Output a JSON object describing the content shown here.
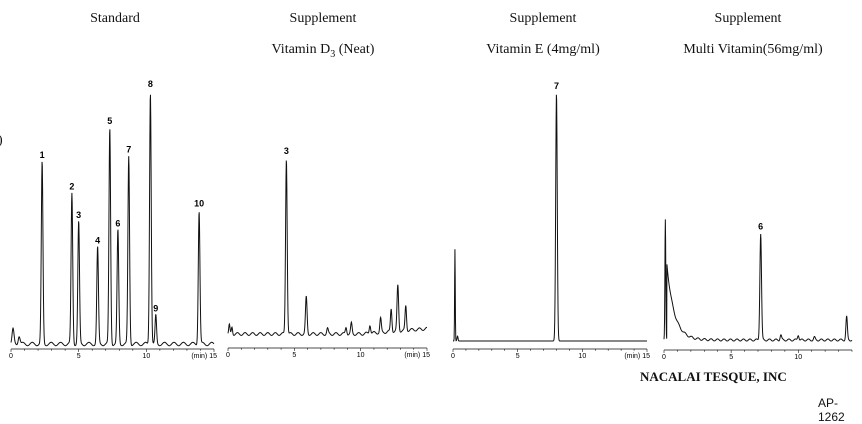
{
  "stray_char": ")",
  "footer": {
    "company": "NACALAI TESQUE, INC",
    "code": "AP-1262"
  },
  "chart_data": [
    {
      "type": "line",
      "title": "Standard",
      "subtitle": "",
      "x_ticks": [
        "0",
        "5",
        "10",
        "(min) 15"
      ],
      "xlim": [
        0,
        15
      ],
      "peaks": [
        {
          "label": "1",
          "x": 2.3,
          "h": 0.64
        },
        {
          "label": "2",
          "x": 4.5,
          "h": 0.53
        },
        {
          "label": "3",
          "x": 5.0,
          "h": 0.43
        },
        {
          "label": "4",
          "x": 6.4,
          "h": 0.34
        },
        {
          "label": "5",
          "x": 7.3,
          "h": 0.76
        },
        {
          "label": "6",
          "x": 7.9,
          "h": 0.4
        },
        {
          "label": "7",
          "x": 8.7,
          "h": 0.66
        },
        {
          "label": "8",
          "x": 10.3,
          "h": 0.89
        },
        {
          "label": "9",
          "x": 10.7,
          "h": 0.1
        },
        {
          "label": "10",
          "x": 13.9,
          "h": 0.47
        }
      ]
    },
    {
      "type": "line",
      "title": "Supplement",
      "subtitle": "Vitamin D3 (Neat)",
      "x_ticks": [
        "0",
        "5",
        "10",
        "(min) 15"
      ],
      "xlim": [
        0,
        15
      ],
      "peaks": [
        {
          "label": "3",
          "x": 4.4,
          "h": 1.0
        },
        {
          "label": "",
          "x": 5.9,
          "h": 0.21
        },
        {
          "label": "",
          "x": 7.5,
          "h": 0.03
        },
        {
          "label": "",
          "x": 8.9,
          "h": 0.04
        },
        {
          "label": "",
          "x": 9.3,
          "h": 0.06
        },
        {
          "label": "",
          "x": 10.7,
          "h": 0.05
        },
        {
          "label": "",
          "x": 11.5,
          "h": 0.08
        },
        {
          "label": "",
          "x": 12.3,
          "h": 0.13
        },
        {
          "label": "",
          "x": 12.8,
          "h": 0.26
        },
        {
          "label": "",
          "x": 13.4,
          "h": 0.14
        }
      ]
    },
    {
      "type": "line",
      "title": "Supplement",
      "subtitle": "Vitamin E (4mg/ml)",
      "x_ticks": [
        "0",
        "5",
        "10",
        "(min) 15"
      ],
      "xlim": [
        0,
        15
      ],
      "peaks": [
        {
          "label": "7",
          "x": 8.0,
          "h": 1.0
        }
      ]
    },
    {
      "type": "line",
      "title": "Supplement",
      "subtitle": "Multi Vitamin(56mg/ml)",
      "x_ticks": [
        "0",
        "5",
        "10"
      ],
      "xlim": [
        0,
        14
      ],
      "peaks": [
        {
          "label": "6",
          "x": 7.2,
          "h": 0.41
        },
        {
          "label": "",
          "x": 8.7,
          "h": 0.02
        },
        {
          "label": "",
          "x": 10.0,
          "h": 0.02
        },
        {
          "label": "",
          "x": 11.2,
          "h": 0.01
        },
        {
          "label": "",
          "x": 13.6,
          "h": 0.09
        }
      ]
    }
  ]
}
